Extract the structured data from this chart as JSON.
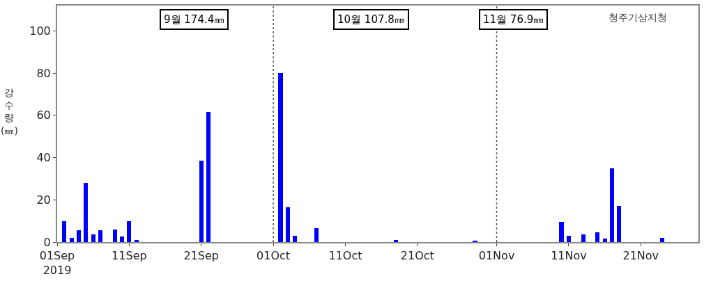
{
  "chart_data": {
    "type": "bar",
    "ylabel": "강\n수\n량\n(㎜)",
    "x": [
      "2019-09-02",
      "2019-09-03",
      "2019-09-04",
      "2019-09-05",
      "2019-09-06",
      "2019-09-07",
      "2019-09-09",
      "2019-09-10",
      "2019-09-11",
      "2019-09-12",
      "2019-09-21",
      "2019-09-22",
      "2019-10-02",
      "2019-10-03",
      "2019-10-04",
      "2019-10-07",
      "2019-10-18",
      "2019-10-29",
      "2019-11-10",
      "2019-11-11",
      "2019-11-13",
      "2019-11-15",
      "2019-11-16",
      "2019-11-17",
      "2019-11-18",
      "2019-11-24"
    ],
    "values": [
      10,
      2,
      5.5,
      28,
      3.5,
      5.5,
      6,
      2.5,
      10,
      1,
      38.5,
      61.5,
      80,
      16.5,
      3,
      6.5,
      1,
      0.5,
      9.5,
      3,
      3.5,
      4.5,
      1.5,
      35,
      17,
      2
    ],
    "color": "#0000ff",
    "xlim": [
      "2019-09-01",
      "2019-11-29"
    ],
    "xticks": [
      {
        "value": "2019-09-01",
        "label": "01Sep\n2019"
      },
      {
        "value": "2019-09-11",
        "label": "11Sep"
      },
      {
        "value": "2019-09-21",
        "label": "21Sep"
      },
      {
        "value": "2019-10-01",
        "label": "01Oct"
      },
      {
        "value": "2019-10-11",
        "label": "11Oct"
      },
      {
        "value": "2019-10-21",
        "label": "21Oct"
      },
      {
        "value": "2019-11-01",
        "label": "01Nov"
      },
      {
        "value": "2019-11-11",
        "label": "11Nov"
      },
      {
        "value": "2019-11-21",
        "label": "21Nov"
      }
    ],
    "ylim": [
      0,
      112
    ],
    "yticks": [
      0,
      20,
      40,
      60,
      80,
      100
    ],
    "ref_lines": [
      {
        "axis": "x",
        "value": "2019-10-01",
        "line_style": "dotted",
        "color": "#555555"
      },
      {
        "axis": "x",
        "value": "2019-11-01",
        "line_style": "dotted",
        "color": "#555555"
      }
    ],
    "annotations": [
      "9월 174.4㎜",
      "10월 107.8㎜",
      "11월 76.9㎜",
      "청주기상지청"
    ],
    "legend": false
  }
}
